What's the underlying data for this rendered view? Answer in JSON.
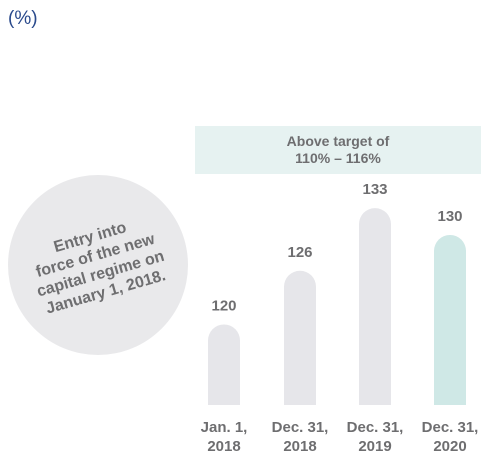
{
  "unit_label": "(%)",
  "annotation": {
    "lines": [
      "Entry into",
      "force of the new",
      "capital regime on",
      "January 1, 2018."
    ]
  },
  "target_band": {
    "lines": [
      "Above target of",
      "110% – 116%"
    ],
    "low": 110,
    "high": 116
  },
  "colors": {
    "bar_default": "#e6e6ea",
    "bar_highlight": "#cfe8e6",
    "label": "#6e6e70",
    "band": "#e6f2f1",
    "unit": "#2a4a8c"
  },
  "chart_data": {
    "type": "bar",
    "title": "",
    "xlabel": "",
    "ylabel": "(%)",
    "categories": [
      [
        "Jan. 1,",
        "2018"
      ],
      [
        "Dec. 31,",
        "2018"
      ],
      [
        "Dec. 31,",
        "2019"
      ],
      [
        "Dec. 31,",
        "2020"
      ]
    ],
    "values": [
      120,
      126,
      133,
      130
    ],
    "highlight_index": 3,
    "value_labels": [
      "120",
      "126",
      "133",
      "130"
    ]
  }
}
